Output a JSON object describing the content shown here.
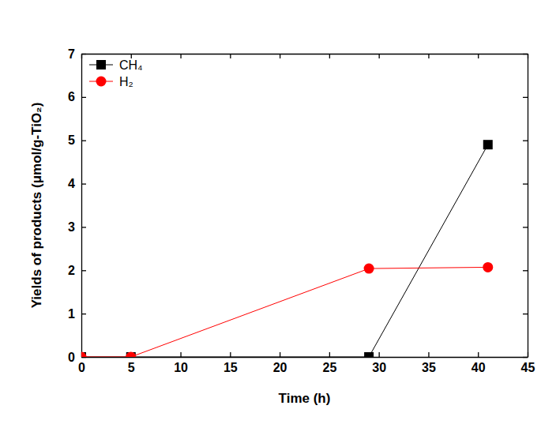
{
  "chart_data": {
    "type": "line",
    "x_label": "Time (h)",
    "y_label": "Yields of products (μmol/g-TiO₂)",
    "x": [
      0,
      5,
      29,
      41
    ],
    "series": [
      {
        "name": "CH₄",
        "color": "#000000",
        "marker": "square",
        "values": [
          0,
          0,
          0,
          4.9
        ]
      },
      {
        "name": "H₂",
        "color": "#ff0000",
        "marker": "circle",
        "values": [
          0,
          0,
          2.04,
          2.07
        ]
      }
    ],
    "xlim": [
      0,
      45
    ],
    "xticks": [
      0,
      5,
      10,
      15,
      20,
      25,
      30,
      35,
      40,
      45
    ],
    "ylim": [
      0,
      7
    ],
    "yticks": [
      0,
      1,
      2,
      3,
      4,
      5,
      6,
      7
    ],
    "legend": "upper left"
  }
}
